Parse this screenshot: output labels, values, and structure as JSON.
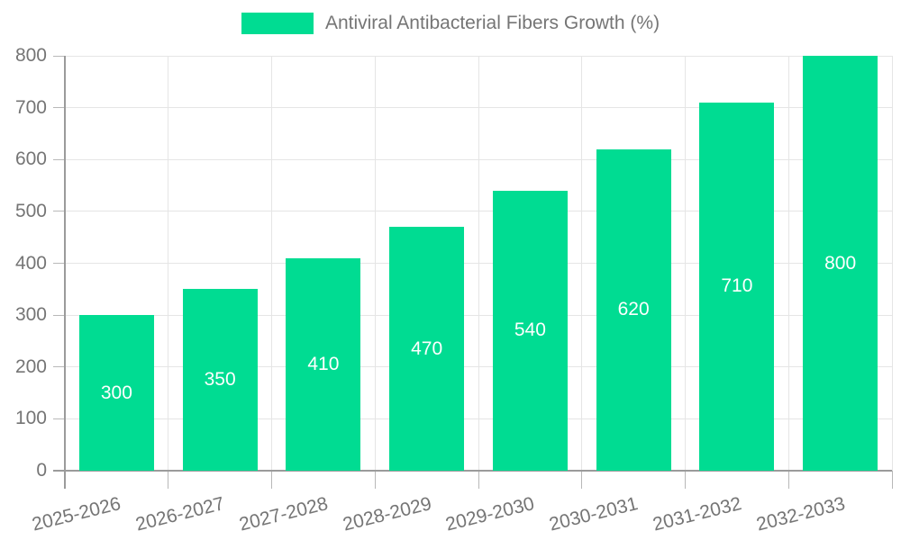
{
  "legend": {
    "label": "Antiviral Antibacterial Fibers Growth (%)"
  },
  "chart_data": {
    "type": "bar",
    "title": "Antiviral Antibacterial Fibers Growth (%)",
    "categories": [
      "2025-2026",
      "2026-2027",
      "2027-2028",
      "2028-2029",
      "2029-2030",
      "2030-2031",
      "2031-2032",
      "2032-2033"
    ],
    "values": [
      300,
      350,
      410,
      470,
      540,
      620,
      710,
      800
    ],
    "bar_value_labels": [
      "300",
      "350",
      "410",
      "470",
      "540",
      "620",
      "710",
      "800"
    ],
    "xlabel": "",
    "ylabel": "",
    "ylim": [
      0,
      800
    ],
    "ytick_step": 100,
    "ytick_labels": [
      "0",
      "100",
      "200",
      "300",
      "400",
      "500",
      "600",
      "700",
      "800"
    ],
    "grid": true,
    "legend_position": "top",
    "colors": {
      "bar": "#00DC92",
      "axis_text": "#757575",
      "value_label_text": "#FFFFFF",
      "gridline": "#E5E5E5",
      "axis_line": "#9B9B9B",
      "tick": "#B8B8B8",
      "background": "#FFFFFF"
    }
  }
}
